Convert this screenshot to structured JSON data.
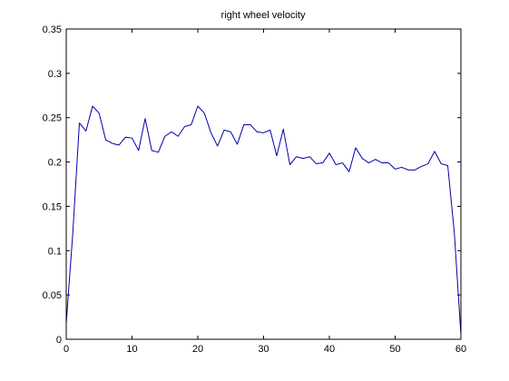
{
  "chart_data": {
    "type": "line",
    "title": "right wheel velocity",
    "xlabel": "",
    "ylabel": "",
    "xlim": [
      0,
      60
    ],
    "ylim": [
      0,
      0.35
    ],
    "xticks": [
      0,
      10,
      20,
      30,
      40,
      50,
      60
    ],
    "yticks": [
      0,
      0.05,
      0.1,
      0.15,
      0.2,
      0.25,
      0.3,
      0.35
    ],
    "xtick_labels": [
      "0",
      "10",
      "20",
      "30",
      "40",
      "50",
      "60"
    ],
    "ytick_labels": [
      "0",
      "0.05",
      "0.1",
      "0.15",
      "0.2",
      "0.25",
      "0.3",
      "0.35"
    ],
    "grid": false,
    "legend": "none",
    "series": [
      {
        "color": "#0000aa",
        "x": [
          0,
          1,
          2,
          3,
          4,
          5,
          6,
          7,
          8,
          9,
          10,
          11,
          12,
          13,
          14,
          15,
          16,
          17,
          18,
          19,
          20,
          21,
          22,
          23,
          24,
          25,
          26,
          27,
          28,
          29,
          30,
          31,
          32,
          33,
          34,
          35,
          36,
          37,
          38,
          39,
          40,
          41,
          42,
          43,
          44,
          45,
          46,
          47,
          48,
          49,
          50,
          51,
          52,
          53,
          54,
          55,
          56,
          57,
          58,
          59,
          60
        ],
        "y": [
          0.018,
          0.12,
          0.244,
          0.235,
          0.263,
          0.255,
          0.225,
          0.221,
          0.219,
          0.228,
          0.227,
          0.213,
          0.249,
          0.213,
          0.211,
          0.229,
          0.234,
          0.229,
          0.24,
          0.242,
          0.263,
          0.255,
          0.233,
          0.218,
          0.236,
          0.234,
          0.22,
          0.242,
          0.242,
          0.234,
          0.233,
          0.236,
          0.207,
          0.237,
          0.197,
          0.206,
          0.204,
          0.206,
          0.198,
          0.199,
          0.21,
          0.197,
          0.199,
          0.189,
          0.216,
          0.204,
          0.199,
          0.203,
          0.199,
          0.199,
          0.192,
          0.194,
          0.191,
          0.191,
          0.195,
          0.198,
          0.212,
          0.198,
          0.196,
          0.12,
          0.005
        ]
      }
    ]
  }
}
